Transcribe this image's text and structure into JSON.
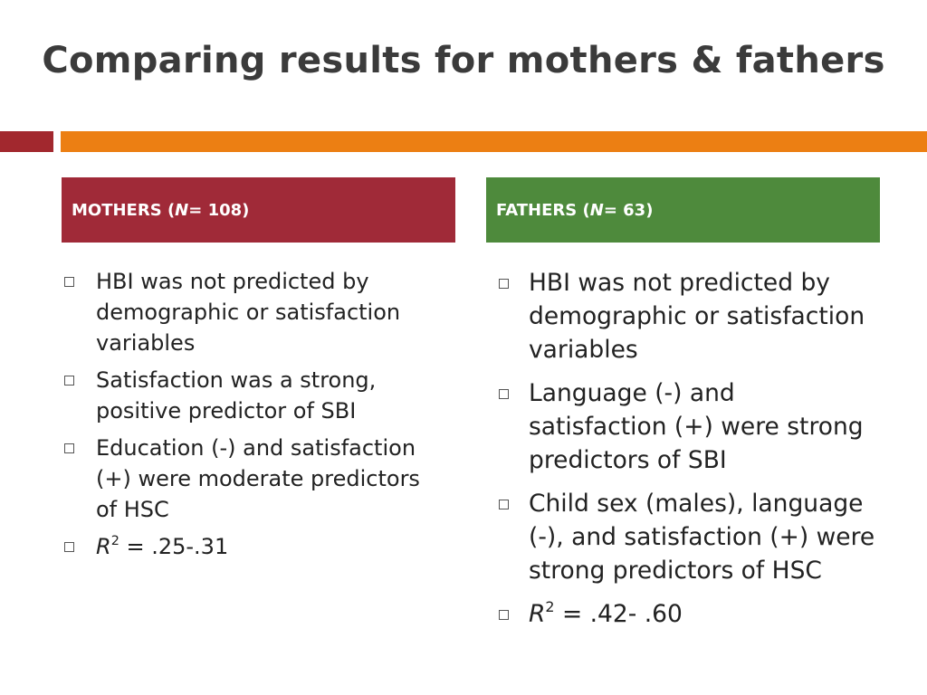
{
  "slide": {
    "title": "Comparing results for mothers & fathers",
    "colors": {
      "title": "#3b3b3b",
      "accent_red": "#a2282e",
      "accent_orange": "#ec7f13"
    }
  },
  "mothers": {
    "header_prefix": "MOTHERS (",
    "header_n": "N",
    "header_suffix": " = 108)",
    "header_color": "#a02a38",
    "bullets": [
      "HBI was not predicted by demographic or satisfaction variables",
      "Satisfaction was a strong, positive predictor of SBI",
      "Education (-) and satisfaction (+) were moderate predictors of HSC"
    ],
    "r2": {
      "symbol": "R",
      "exponent": "2",
      "value": " = .25-.31"
    }
  },
  "fathers": {
    "header_prefix": "FATHERS (",
    "header_n": "N",
    "header_suffix": "  = 63)",
    "header_color": "#4e8a3c",
    "bullets": [
      "HBI was not predicted by demographic or satisfaction variables",
      "Language (-) and satisfaction (+) were strong predictors of SBI",
      "Child sex (males), language (-), and satisfaction (+) were strong predictors of HSC"
    ],
    "r2": {
      "symbol": "R",
      "exponent": "2",
      "value": " = .42- .60"
    }
  }
}
